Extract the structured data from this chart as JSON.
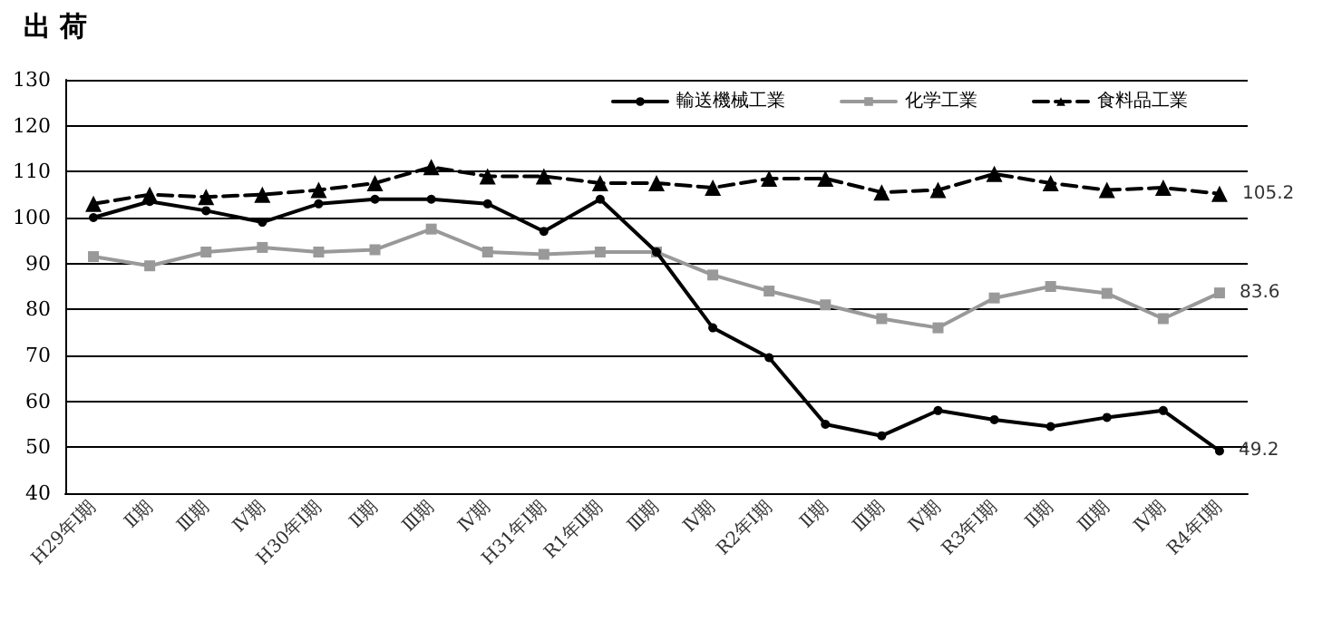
{
  "chart_data": {
    "type": "line",
    "title": "出 荷",
    "categories": [
      "H29年Ⅰ期",
      "Ⅱ期",
      "Ⅲ期",
      "Ⅳ期",
      "H30年Ⅰ期",
      "Ⅱ期",
      "Ⅲ期",
      "Ⅳ期",
      "H31年Ⅰ期",
      "R1年Ⅱ期",
      "Ⅲ期",
      "Ⅳ期",
      "R2年Ⅰ期",
      "Ⅱ期",
      "Ⅲ期",
      "Ⅳ期",
      "R3年Ⅰ期",
      "Ⅱ期",
      "Ⅲ期",
      "Ⅳ期",
      "R4年Ⅰ期"
    ],
    "series": [
      {
        "name": "輸送機械工業",
        "color": "#000000",
        "marker": "circle",
        "line_style": "solid",
        "values": [
          100,
          103.5,
          101.5,
          99,
          103,
          104,
          104,
          103,
          97,
          104,
          92.5,
          76,
          69.5,
          55,
          52.5,
          58,
          56,
          54.5,
          56.5,
          58,
          49.2
        ],
        "value_labels": [
          null,
          null,
          null,
          null,
          null,
          null,
          null,
          null,
          null,
          null,
          null,
          null,
          null,
          null,
          null,
          null,
          null,
          null,
          null,
          null,
          "49.2"
        ]
      },
      {
        "name": "化学工業",
        "color": "#999999",
        "marker": "square",
        "line_style": "solid",
        "values": [
          91.5,
          89.5,
          92.5,
          93.5,
          92.5,
          93,
          97.5,
          92.5,
          92,
          92.5,
          92.5,
          87.5,
          84,
          81,
          78,
          76,
          82.5,
          85,
          83.5,
          78,
          83.6
        ],
        "value_labels": [
          null,
          null,
          null,
          null,
          null,
          null,
          null,
          null,
          null,
          null,
          null,
          null,
          null,
          null,
          null,
          null,
          null,
          null,
          null,
          null,
          "83.6"
        ]
      },
      {
        "name": "食料品工業",
        "color": "#000000",
        "marker": "triangle",
        "line_style": "dashed",
        "values": [
          103,
          105,
          104.5,
          105,
          106,
          107.5,
          111,
          109,
          109,
          107.5,
          107.5,
          106.5,
          108.5,
          108.5,
          105.5,
          106,
          109.5,
          107.5,
          106,
          106.5,
          105.2
        ],
        "value_labels": [
          null,
          null,
          null,
          null,
          null,
          null,
          null,
          null,
          null,
          null,
          null,
          null,
          null,
          null,
          null,
          null,
          null,
          null,
          null,
          null,
          "105.2"
        ]
      }
    ],
    "ylim": [
      40,
      130
    ],
    "yticks": [
      40,
      50,
      60,
      70,
      80,
      90,
      100,
      110,
      120,
      130
    ],
    "grid": "y",
    "legend": "top right"
  }
}
